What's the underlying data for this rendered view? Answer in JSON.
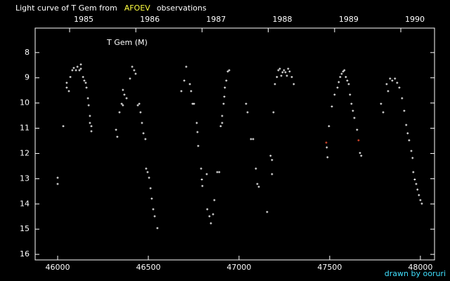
{
  "chart_data": {
    "type": "scatter",
    "title_parts": [
      "Light curve of T Gem from",
      "AFOEV",
      "observations"
    ],
    "title_colors": [
      "#ffffff",
      "#ffff40",
      "#ffffff"
    ],
    "annotation": "T Gem (M)",
    "credit": "drawn by ooruri",
    "xlim": [
      45876,
      48078
    ],
    "ylim": [
      16.22,
      7.03
    ],
    "xticks": [
      46000,
      46500,
      47000,
      47500,
      48000
    ],
    "yticks": [
      8,
      9,
      10,
      11,
      12,
      13,
      14,
      15,
      16
    ],
    "x2ticks": [
      {
        "value": 46066,
        "label": "1985"
      },
      {
        "value": 46431,
        "label": "1986"
      },
      {
        "value": 46796,
        "label": "1987"
      },
      {
        "value": 47161,
        "label": "1988"
      },
      {
        "value": 47527,
        "label": "1989"
      },
      {
        "value": 47892,
        "label": "1990"
      }
    ],
    "series": [
      {
        "color": "#ffffff",
        "x": [
          46000,
          46000,
          46031,
          46050,
          46050,
          46062,
          46070,
          46081,
          46089,
          46101,
          46109,
          46120,
          46128,
          46128,
          46140,
          46147,
          46155,
          46159,
          46167,
          46171,
          46178,
          46178,
          46186,
          46186,
          46322,
          46329,
          46341,
          46353,
          46360,
          46360,
          46368,
          46380,
          46399,
          46411,
          46422,
          46430,
          46442,
          46450,
          46457,
          46465,
          46473,
          46484,
          46488,
          46496,
          46504,
          46512,
          46519,
          46527,
          46535,
          46550,
          46682,
          46698,
          46709,
          46729,
          46736,
          46744,
          46752,
          46767,
          46771,
          46775,
          46791,
          46795,
          46798,
          46822,
          46825,
          46837,
          46845,
          46857,
          46864,
          46880,
          46891,
          46899,
          46907,
          46907,
          46915,
          46919,
          46922,
          46930,
          46938,
          46946,
          47039,
          47047,
          47066,
          47078,
          47093,
          47101,
          47109,
          47155,
          47174,
          47182,
          47182,
          47190,
          47198,
          47209,
          47217,
          47225,
          47233,
          47240,
          47248,
          47256,
          47264,
          47271,
          47279,
          47291,
          47302,
          47484,
          47488,
          47496,
          47512,
          47527,
          47543,
          47550,
          47558,
          47566,
          47574,
          47581,
          47589,
          47597,
          47605,
          47612,
          47620,
          47628,
          47636,
          47651,
          47667,
          47674,
          47783,
          47795,
          47814,
          47822,
          47833,
          47845,
          47860,
          47872,
          47884,
          47899,
          47911,
          47922,
          47930,
          47938,
          47950,
          47957,
          47961,
          47969,
          47977,
          47984,
          47992,
          48000,
          48008
        ],
        "values": [
          12.96,
          13.21,
          10.92,
          9.2,
          9.39,
          9.53,
          8.97,
          8.7,
          8.61,
          8.7,
          8.56,
          8.7,
          8.47,
          8.64,
          8.97,
          9.11,
          9.2,
          9.39,
          9.81,
          10.09,
          10.51,
          10.79,
          10.92,
          11.12,
          11.06,
          11.34,
          10.37,
          10.03,
          10.09,
          9.48,
          9.67,
          9.81,
          9.03,
          8.56,
          8.7,
          8.84,
          10.09,
          10.03,
          10.37,
          10.79,
          11.2,
          11.43,
          12.6,
          12.74,
          12.96,
          13.38,
          13.79,
          14.21,
          14.49,
          14.96,
          9.53,
          9.11,
          8.56,
          9.25,
          9.53,
          10.03,
          10.03,
          10.79,
          11.15,
          11.7,
          12.6,
          13.03,
          13.29,
          12.82,
          14.21,
          14.49,
          14.77,
          14.41,
          13.85,
          12.74,
          12.74,
          10.92,
          10.79,
          10.51,
          10.03,
          9.75,
          9.39,
          9.11,
          8.75,
          8.7,
          10.03,
          10.37,
          11.43,
          11.43,
          12.6,
          13.21,
          13.32,
          14.32,
          12.09,
          12.26,
          12.82,
          10.37,
          9.25,
          8.97,
          8.7,
          8.64,
          8.92,
          8.78,
          8.7,
          8.78,
          8.92,
          8.64,
          8.75,
          8.97,
          9.25,
          11.76,
          12.15,
          10.92,
          10.14,
          9.67,
          9.39,
          9.17,
          8.97,
          8.84,
          8.75,
          8.7,
          8.97,
          9.11,
          9.25,
          9.67,
          10.03,
          10.31,
          10.59,
          11.06,
          11.98,
          12.09,
          10.03,
          10.37,
          9.25,
          9.53,
          9.03,
          9.11,
          9.03,
          9.2,
          9.39,
          9.81,
          10.31,
          10.87,
          11.2,
          11.48,
          11.9,
          12.18,
          12.74,
          13.03,
          13.21,
          13.43,
          13.65,
          13.85,
          13.99
        ]
      },
      {
        "color": "#ff5030",
        "x": [
          47481,
          47659
        ],
        "values": [
          11.57,
          11.48
        ]
      }
    ]
  }
}
